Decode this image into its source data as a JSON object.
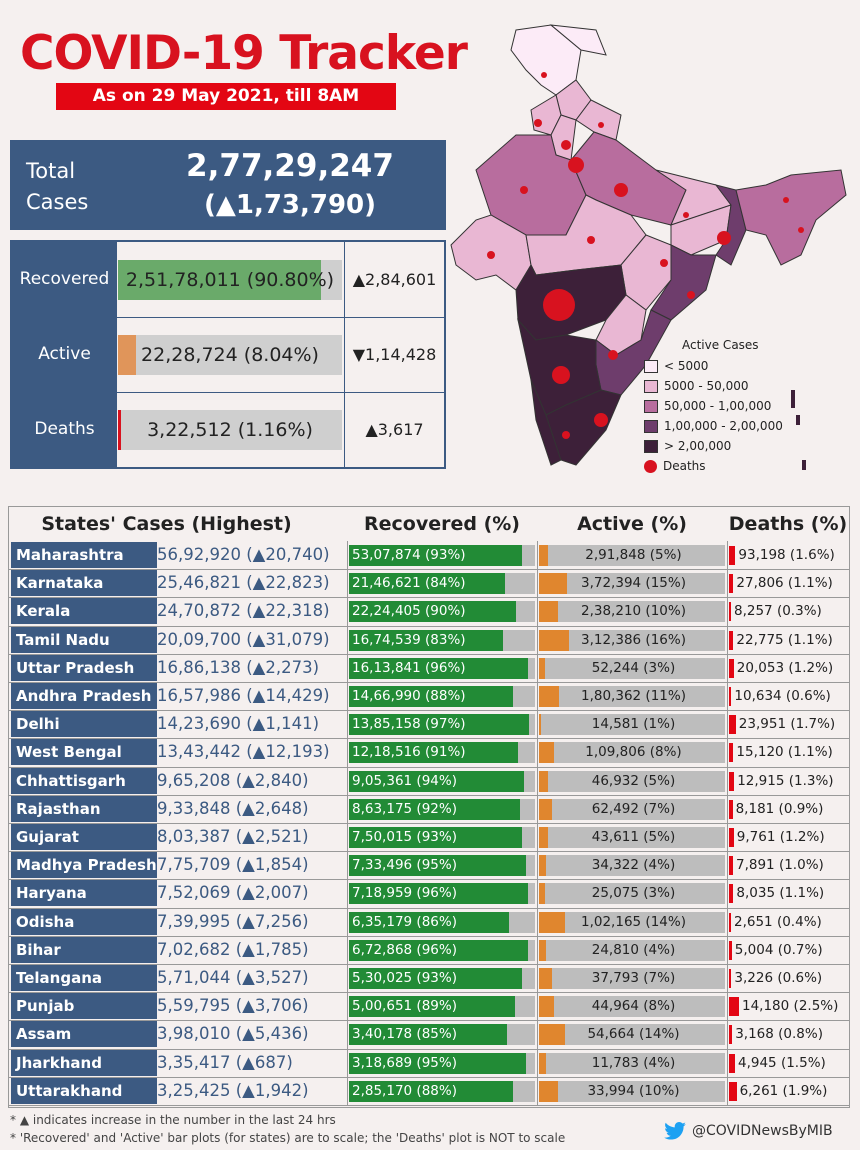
{
  "header": {
    "title": "COVID-19 Tracker",
    "subtitle": "As on 29 May 2021, till 8AM"
  },
  "total": {
    "label": "Total Cases",
    "value": "2,77,29,247",
    "delta": "(▲1,73,790)"
  },
  "summary": [
    {
      "label": "Recovered",
      "value": "2,51,78,011",
      "pct": "(90.80%)",
      "pct_num": 90.8,
      "delta": "▲2,84,601",
      "color": "#6aaa6a"
    },
    {
      "label": "Active",
      "value": "22,28,724",
      "pct": "(8.04%)",
      "pct_num": 8.04,
      "delta": "▼1,14,428",
      "color": "#e0955a"
    },
    {
      "label": "Deaths",
      "value": "3,22,512",
      "pct": "(1.16%)",
      "pct_num": 1.16,
      "delta": "▲3,617",
      "color": "#d8121f"
    }
  ],
  "legend": {
    "title": "Active Cases",
    "items": [
      {
        "label": "< 5000",
        "color": "#fcebf7"
      },
      {
        "label": "5000 - 50,000",
        "color": "#e9b7d3"
      },
      {
        "label": "50,000 - 1,00,000",
        "color": "#b86d9e"
      },
      {
        "label": "1,00,000 - 2,00,000",
        "color": "#6e3d6c"
      },
      {
        "label": "> 2,00,000",
        "color": "#3d2039"
      }
    ],
    "deaths_label": "Deaths"
  },
  "table_headers": {
    "states": "States' Cases (Highest)",
    "recovered": "Recovered (%)",
    "active": "Active (%)",
    "deaths": "Deaths (%)"
  },
  "chart_data": {
    "type": "table",
    "columns": [
      "State",
      "Cases",
      "Delta",
      "Recovered",
      "Recovered %",
      "Active",
      "Active %",
      "Deaths",
      "Deaths %"
    ],
    "rows": [
      {
        "state": "Maharashtra",
        "cases": "56,92,920",
        "delta": "(▲20,740)",
        "recovered": "53,07,874",
        "rec_pct": 93,
        "active": "2,91,848",
        "act_pct": 5,
        "deaths": "93,198",
        "death_pct": 1.6
      },
      {
        "state": "Karnataka",
        "cases": "25,46,821",
        "delta": "(▲22,823)",
        "recovered": "21,46,621",
        "rec_pct": 84,
        "active": "3,72,394",
        "act_pct": 15,
        "deaths": "27,806",
        "death_pct": 1.1
      },
      {
        "state": "Kerala",
        "cases": "24,70,872",
        "delta": "(▲22,318)",
        "recovered": "22,24,405",
        "rec_pct": 90,
        "active": "2,38,210",
        "act_pct": 10,
        "deaths": "8,257",
        "death_pct": 0.3
      },
      {
        "state": "Tamil Nadu",
        "cases": "20,09,700",
        "delta": "(▲31,079)",
        "recovered": "16,74,539",
        "rec_pct": 83,
        "active": "3,12,386",
        "act_pct": 16,
        "deaths": "22,775",
        "death_pct": 1.1
      },
      {
        "state": "Uttar Pradesh",
        "cases": "16,86,138",
        "delta": "(▲2,273)",
        "recovered": "16,13,841",
        "rec_pct": 96,
        "active": "52,244",
        "act_pct": 3,
        "deaths": "20,053",
        "death_pct": 1.2
      },
      {
        "state": "Andhra Pradesh",
        "cases": "16,57,986",
        "delta": "(▲14,429)",
        "recovered": "14,66,990",
        "rec_pct": 88,
        "active": "1,80,362",
        "act_pct": 11,
        "deaths": "10,634",
        "death_pct": 0.6
      },
      {
        "state": "Delhi",
        "cases": "14,23,690",
        "delta": "(▲1,141)",
        "recovered": "13,85,158",
        "rec_pct": 97,
        "active": "14,581",
        "act_pct": 1,
        "deaths": "23,951",
        "death_pct": 1.7
      },
      {
        "state": "West Bengal",
        "cases": "13,43,442",
        "delta": "(▲12,193)",
        "recovered": "12,18,516",
        "rec_pct": 91,
        "active": "1,09,806",
        "act_pct": 8,
        "deaths": "15,120",
        "death_pct": 1.1
      },
      {
        "state": "Chhattisgarh",
        "cases": "9,65,208",
        "delta": "(▲2,840)",
        "recovered": "9,05,361",
        "rec_pct": 94,
        "active": "46,932",
        "act_pct": 5,
        "deaths": "12,915",
        "death_pct": 1.3
      },
      {
        "state": "Rajasthan",
        "cases": "9,33,848",
        "delta": "(▲2,648)",
        "recovered": "8,63,175",
        "rec_pct": 92,
        "active": "62,492",
        "act_pct": 7,
        "deaths": "8,181",
        "death_pct": 0.9
      },
      {
        "state": "Gujarat",
        "cases": "8,03,387",
        "delta": "(▲2,521)",
        "recovered": "7,50,015",
        "rec_pct": 93,
        "active": "43,611",
        "act_pct": 5,
        "deaths": "9,761",
        "death_pct": 1.2
      },
      {
        "state": "Madhya Pradesh",
        "cases": "7,75,709",
        "delta": "(▲1,854)",
        "recovered": "7,33,496",
        "rec_pct": 95,
        "active": "34,322",
        "act_pct": 4,
        "deaths": "7,891",
        "death_pct": 1.0
      },
      {
        "state": "Haryana",
        "cases": "7,52,069",
        "delta": "(▲2,007)",
        "recovered": "7,18,959",
        "rec_pct": 96,
        "active": "25,075",
        "act_pct": 3,
        "deaths": "8,035",
        "death_pct": 1.1
      },
      {
        "state": "Odisha",
        "cases": "7,39,995",
        "delta": "(▲7,256)",
        "recovered": "6,35,179",
        "rec_pct": 86,
        "active": "1,02,165",
        "act_pct": 14,
        "deaths": "2,651",
        "death_pct": 0.4
      },
      {
        "state": "Bihar",
        "cases": "7,02,682",
        "delta": "(▲1,785)",
        "recovered": "6,72,868",
        "rec_pct": 96,
        "active": "24,810",
        "act_pct": 4,
        "deaths": "5,004",
        "death_pct": 0.7
      },
      {
        "state": "Telangana",
        "cases": "5,71,044",
        "delta": "(▲3,527)",
        "recovered": "5,30,025",
        "rec_pct": 93,
        "active": "37,793",
        "act_pct": 7,
        "deaths": "3,226",
        "death_pct": 0.6
      },
      {
        "state": "Punjab",
        "cases": "5,59,795",
        "delta": "(▲3,706)",
        "recovered": "5,00,651",
        "rec_pct": 89,
        "active": "44,964",
        "act_pct": 8,
        "deaths": "14,180",
        "death_pct": 2.5
      },
      {
        "state": "Assam",
        "cases": "3,98,010",
        "delta": "(▲5,436)",
        "recovered": "3,40,178",
        "rec_pct": 85,
        "active": "54,664",
        "act_pct": 14,
        "deaths": "3,168",
        "death_pct": 0.8
      },
      {
        "state": "Jharkhand",
        "cases": "3,35,417",
        "delta": "(▲687)",
        "recovered": "3,18,689",
        "rec_pct": 95,
        "active": "11,783",
        "act_pct": 4,
        "deaths": "4,945",
        "death_pct": 1.5
      },
      {
        "state": "Uttarakhand",
        "cases": "3,25,425",
        "delta": "(▲1,942)",
        "recovered": "2,85,170",
        "rec_pct": 88,
        "active": "33,994",
        "act_pct": 10,
        "deaths": "6,261",
        "death_pct": 1.9
      }
    ]
  },
  "colors": {
    "recovered_bar": "#228b36",
    "active_bar": "#e0862e",
    "deaths_bar": "#e30613",
    "bar_bg": "#bdbdbd",
    "navy": "#3c5a82"
  },
  "footnotes": [
    "* ▲ indicates increase in the number in the last 24 hrs",
    "* 'Recovered' and 'Active' bar plots (for states) are to scale; the 'Deaths' plot is NOT to scale"
  ],
  "handle": "@COVIDNewsByMIB",
  "icons": {
    "twitter": "twitter-bird-icon"
  }
}
